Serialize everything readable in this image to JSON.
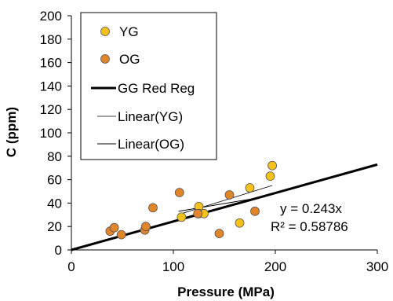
{
  "chart_data": {
    "type": "scatter",
    "xlabel": "Pressure (MPa)",
    "ylabel": "C (ppm)",
    "xlim": [
      0,
      300
    ],
    "ylim": [
      0,
      200
    ],
    "xticks": [
      0,
      100,
      200,
      300
    ],
    "yticks": [
      0,
      20,
      40,
      60,
      80,
      100,
      120,
      140,
      160,
      180,
      200
    ],
    "grid": false,
    "legend_position": "top-left",
    "series": [
      {
        "name": "YG",
        "kind": "points",
        "color": "#f5c21b",
        "points": [
          [
            108,
            28
          ],
          [
            125,
            37
          ],
          [
            125,
            31
          ],
          [
            130,
            31
          ],
          [
            165,
            23
          ],
          [
            175,
            53
          ],
          [
            195,
            63
          ],
          [
            197,
            72
          ]
        ]
      },
      {
        "name": "OG",
        "kind": "points",
        "color": "#e0852a",
        "points": [
          [
            38,
            16
          ],
          [
            42,
            19
          ],
          [
            49,
            13
          ],
          [
            72,
            17
          ],
          [
            73,
            20
          ],
          [
            80,
            36
          ],
          [
            106,
            49
          ],
          [
            124,
            31
          ],
          [
            145,
            14
          ],
          [
            155,
            47
          ],
          [
            180,
            33
          ]
        ]
      },
      {
        "name": "GG Red Reg",
        "kind": "line",
        "color": "#000000",
        "slope": 0.243,
        "intercept": 0,
        "x_range": [
          0,
          300
        ]
      },
      {
        "name": "Linear(YG)",
        "kind": "trendline",
        "color": "#000000",
        "x_range": [
          108,
          197
        ],
        "y_range": [
          31,
          55
        ]
      },
      {
        "name": "Linear(OG)",
        "kind": "trendline",
        "color": "#000000",
        "x_range": [
          105,
          180
        ],
        "y_range": [
          33,
          44
        ]
      }
    ],
    "annotations": [
      "y = 0.243x",
      "R² = 0.58786"
    ]
  }
}
